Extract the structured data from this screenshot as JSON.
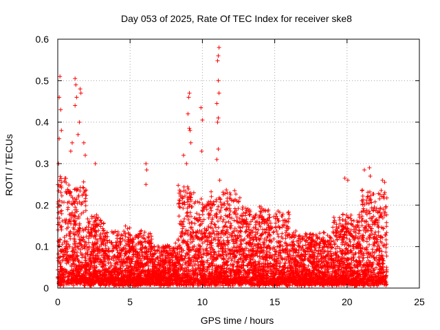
{
  "chart_data": {
    "type": "scatter",
    "title": "Day 053 of 2025, Rate Of TEC Index for receiver ske8",
    "xlabel": "GPS time / hours",
    "ylabel": "ROTI / TECUs",
    "xlim": [
      0,
      25
    ],
    "ylim": [
      0,
      0.6
    ],
    "xticks": [
      0,
      5,
      10,
      15,
      20,
      25
    ],
    "yticks": [
      0,
      0.1,
      0.2,
      0.3,
      0.4,
      0.5,
      0.6
    ],
    "xtick_labels": [
      "0",
      "5",
      "10",
      "15",
      "20",
      "25"
    ],
    "ytick_labels": [
      "0",
      "0.1",
      "0.2",
      "0.3",
      "0.4",
      "0.5",
      "0.6"
    ],
    "grid": true,
    "marker": "plus",
    "color": "#ff0000",
    "data_x_range": [
      0,
      22.75
    ],
    "notable_points": [
      {
        "x": 0.15,
        "y": 0.51
      },
      {
        "x": 0.1,
        "y": 0.46
      },
      {
        "x": 0.2,
        "y": 0.43
      },
      {
        "x": 0.25,
        "y": 0.38
      },
      {
        "x": 0.1,
        "y": 0.36
      },
      {
        "x": 0.05,
        "y": 0.3
      },
      {
        "x": 1.2,
        "y": 0.505
      },
      {
        "x": 1.25,
        "y": 0.49
      },
      {
        "x": 1.3,
        "y": 0.46
      },
      {
        "x": 1.55,
        "y": 0.48
      },
      {
        "x": 1.6,
        "y": 0.47
      },
      {
        "x": 1.2,
        "y": 0.44
      },
      {
        "x": 1.5,
        "y": 0.4
      },
      {
        "x": 1.4,
        "y": 0.37
      },
      {
        "x": 1.0,
        "y": 0.35
      },
      {
        "x": 0.9,
        "y": 0.33
      },
      {
        "x": 1.8,
        "y": 0.35
      },
      {
        "x": 1.9,
        "y": 0.32
      },
      {
        "x": 2.6,
        "y": 0.3
      },
      {
        "x": 6.1,
        "y": 0.3
      },
      {
        "x": 6.15,
        "y": 0.285
      },
      {
        "x": 6.1,
        "y": 0.25
      },
      {
        "x": 8.7,
        "y": 0.32
      },
      {
        "x": 8.9,
        "y": 0.3
      },
      {
        "x": 9.1,
        "y": 0.47
      },
      {
        "x": 9.05,
        "y": 0.46
      },
      {
        "x": 9.0,
        "y": 0.42
      },
      {
        "x": 9.1,
        "y": 0.385
      },
      {
        "x": 9.15,
        "y": 0.38
      },
      {
        "x": 9.2,
        "y": 0.35
      },
      {
        "x": 9.9,
        "y": 0.435
      },
      {
        "x": 10.0,
        "y": 0.405
      },
      {
        "x": 9.95,
        "y": 0.33
      },
      {
        "x": 11.15,
        "y": 0.58
      },
      {
        "x": 11.1,
        "y": 0.56
      },
      {
        "x": 11.05,
        "y": 0.548
      },
      {
        "x": 11.1,
        "y": 0.5
      },
      {
        "x": 11.15,
        "y": 0.47
      },
      {
        "x": 11.0,
        "y": 0.445
      },
      {
        "x": 11.1,
        "y": 0.41
      },
      {
        "x": 11.05,
        "y": 0.4
      },
      {
        "x": 11.1,
        "y": 0.335
      },
      {
        "x": 11.0,
        "y": 0.31
      },
      {
        "x": 11.2,
        "y": 0.26
      },
      {
        "x": 19.85,
        "y": 0.265
      },
      {
        "x": 20.05,
        "y": 0.26
      },
      {
        "x": 21.2,
        "y": 0.285
      },
      {
        "x": 21.55,
        "y": 0.29
      },
      {
        "x": 21.6,
        "y": 0.27
      },
      {
        "x": 22.45,
        "y": 0.26
      },
      {
        "x": 22.6,
        "y": 0.255
      },
      {
        "x": 22.5,
        "y": 0.22
      }
    ]
  }
}
